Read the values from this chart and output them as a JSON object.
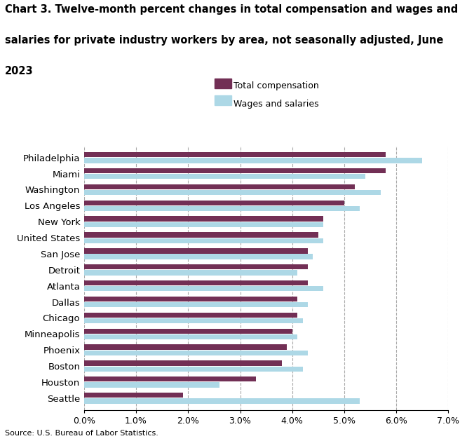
{
  "title_line1": "Chart 3. Twelve-month percent changes in total compensation and wages and",
  "title_line2": "salaries for private industry workers by area, not seasonally adjusted, June",
  "title_line3": "2023",
  "categories": [
    "Philadelphia",
    "Miami",
    "Washington",
    "Los Angeles",
    "New York",
    "United States",
    "San Jose",
    "Detroit",
    "Atlanta",
    "Dallas",
    "Chicago",
    "Minneapolis",
    "Phoenix",
    "Boston",
    "Houston",
    "Seattle"
  ],
  "total_compensation": [
    5.8,
    5.8,
    5.2,
    5.0,
    4.6,
    4.5,
    4.3,
    4.3,
    4.3,
    4.1,
    4.1,
    4.0,
    3.9,
    3.8,
    3.3,
    1.9
  ],
  "wages_and_salaries": [
    6.5,
    5.4,
    5.7,
    5.3,
    4.6,
    4.6,
    4.4,
    4.1,
    4.6,
    4.3,
    4.2,
    4.1,
    4.3,
    4.2,
    2.6,
    5.3
  ],
  "total_compensation_color": "#722F55",
  "wages_salaries_color": "#ADD8E6",
  "xlim": [
    0,
    0.07
  ],
  "xticks": [
    0.0,
    0.01,
    0.02,
    0.03,
    0.04,
    0.05,
    0.06,
    0.07
  ],
  "xtick_labels": [
    "0.0%",
    "1.0%",
    "2.0%",
    "3.0%",
    "4.0%",
    "5.0%",
    "6.0%",
    "7.0%"
  ],
  "grid_color": "#aaaaaa",
  "background_color": "#ffffff",
  "source": "Source: U.S. Bureau of Labor Statistics.",
  "legend_labels": [
    "Total compensation",
    "Wages and salaries"
  ],
  "bar_height": 0.32,
  "bar_gap": 0.04
}
